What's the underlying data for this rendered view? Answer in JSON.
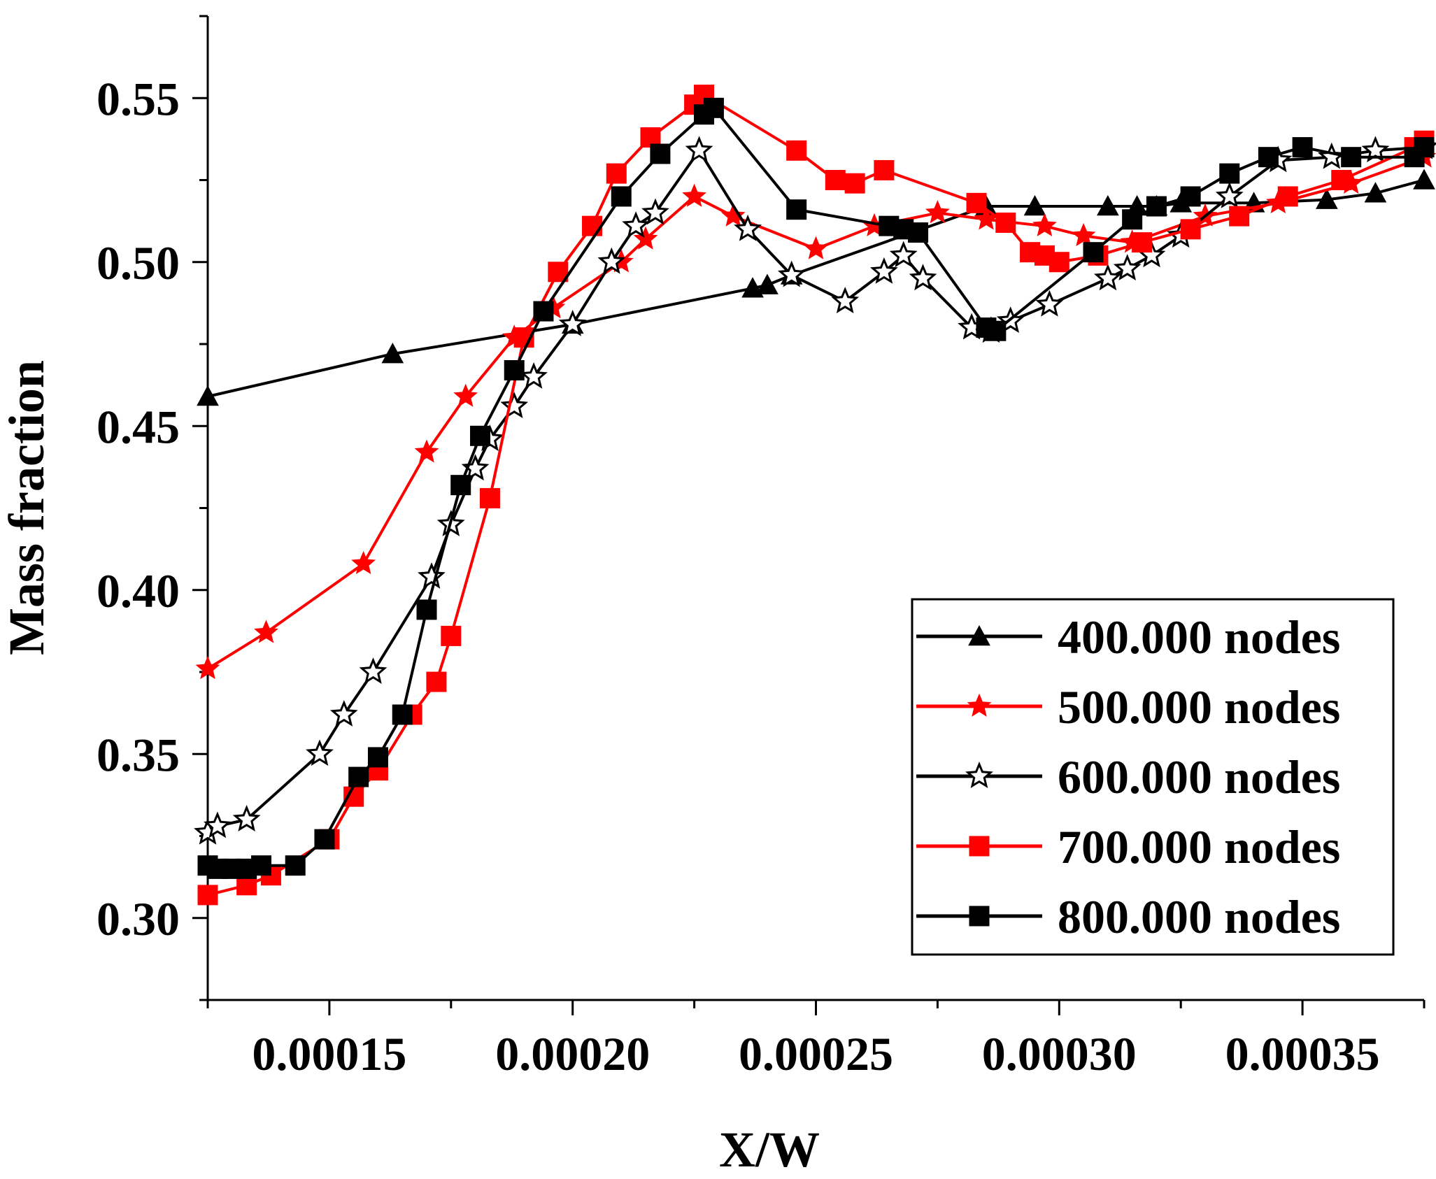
{
  "chart_data": {
    "type": "line",
    "title": "",
    "xlabel": "X/W",
    "ylabel": "Mass fraction",
    "xlim": [
      0.000125,
      0.000375
    ],
    "ylim": [
      0.275,
      0.575
    ],
    "xticks": [
      0.00015,
      0.0002,
      0.00025,
      0.0003,
      0.00035
    ],
    "xtick_labels": [
      "0.00015",
      "0.00020",
      "0.00025",
      "0.00030",
      "0.00035"
    ],
    "yticks": [
      0.3,
      0.35,
      0.4,
      0.45,
      0.5,
      0.55
    ],
    "ytick_labels": [
      "0.30",
      "0.35",
      "0.40",
      "0.45",
      "0.50",
      "0.55"
    ],
    "legend_position": "lower-right",
    "series": [
      {
        "name": "400.000 nodes",
        "color": "#000000",
        "marker": "triangle-filled",
        "x": [
          0.000125,
          0.000163,
          0.0002,
          0.000237,
          0.00024,
          0.000245,
          0.000285,
          0.000295,
          0.00031,
          0.000316,
          0.00032,
          0.000325,
          0.00034,
          0.000355,
          0.000365,
          0.000375
        ],
        "y": [
          0.459,
          0.472,
          0.481,
          0.492,
          0.493,
          0.496,
          0.517,
          0.517,
          0.517,
          0.517,
          0.517,
          0.518,
          0.518,
          0.519,
          0.521,
          0.525
        ]
      },
      {
        "name": "500.000 nodes",
        "color": "#ff0000",
        "marker": "star-filled",
        "x": [
          0.000125,
          0.000137,
          0.000157,
          0.00017,
          0.000178,
          0.000188,
          0.000196,
          0.00021,
          0.000215,
          0.000225,
          0.000233,
          0.00025,
          0.000262,
          0.000275,
          0.000285,
          0.000297,
          0.000305,
          0.000315,
          0.00033,
          0.000345,
          0.00036,
          0.000375
        ],
        "y": [
          0.376,
          0.387,
          0.408,
          0.442,
          0.459,
          0.477,
          0.486,
          0.5,
          0.507,
          0.52,
          0.514,
          0.504,
          0.511,
          0.515,
          0.513,
          0.511,
          0.508,
          0.506,
          0.514,
          0.518,
          0.524,
          0.532
        ]
      },
      {
        "name": "600.000 nodes",
        "color": "#000000",
        "marker": "star-open",
        "x": [
          0.000125,
          0.000127,
          0.000133,
          0.000148,
          0.000153,
          0.000159,
          0.000171,
          0.000175,
          0.00018,
          0.000183,
          0.000188,
          0.000192,
          0.0002,
          0.000208,
          0.000213,
          0.000217,
          0.000226,
          0.000236,
          0.000245,
          0.000256,
          0.000264,
          0.000268,
          0.000272,
          0.000282,
          0.000286,
          0.00029,
          0.000298,
          0.00031,
          0.000314,
          0.000319,
          0.000325,
          0.000335,
          0.000345,
          0.000356,
          0.000365,
          0.000375
        ],
        "y": [
          0.326,
          0.328,
          0.33,
          0.35,
          0.362,
          0.375,
          0.404,
          0.42,
          0.437,
          0.446,
          0.456,
          0.465,
          0.481,
          0.5,
          0.511,
          0.515,
          0.534,
          0.51,
          0.496,
          0.488,
          0.497,
          0.502,
          0.495,
          0.48,
          0.479,
          0.482,
          0.487,
          0.495,
          0.498,
          0.502,
          0.508,
          0.52,
          0.531,
          0.532,
          0.534,
          0.535
        ]
      },
      {
        "name": "700.000 nodes",
        "color": "#ff0000",
        "marker": "square-filled",
        "x": [
          0.000125,
          0.000133,
          0.000138,
          0.00015,
          0.000155,
          0.00016,
          0.000167,
          0.000172,
          0.000175,
          0.000183,
          0.00019,
          0.000197,
          0.000204,
          0.000209,
          0.000216,
          0.000225,
          0.000227,
          0.000246,
          0.000254,
          0.000258,
          0.000264,
          0.000283,
          0.000289,
          0.000294,
          0.000297,
          0.0003,
          0.000308,
          0.000317,
          0.000327,
          0.000337,
          0.000347,
          0.000358,
          0.000373,
          0.000375
        ],
        "y": [
          0.307,
          0.31,
          0.313,
          0.324,
          0.337,
          0.345,
          0.362,
          0.372,
          0.386,
          0.428,
          0.477,
          0.497,
          0.511,
          0.527,
          0.538,
          0.548,
          0.551,
          0.534,
          0.525,
          0.524,
          0.528,
          0.518,
          0.512,
          0.503,
          0.502,
          0.5,
          0.502,
          0.506,
          0.51,
          0.514,
          0.52,
          0.525,
          0.535,
          0.537
        ]
      },
      {
        "name": "800.000 nodes",
        "color": "#000000",
        "marker": "square-filled",
        "x": [
          0.000125,
          0.000127,
          0.00013,
          0.000133,
          0.000136,
          0.000143,
          0.000149,
          0.000156,
          0.00016,
          0.000165,
          0.00017,
          0.000177,
          0.000181,
          0.000188,
          0.000194,
          0.00021,
          0.000218,
          0.000227,
          0.000229,
          0.000246,
          0.000265,
          0.000268,
          0.000271,
          0.000285,
          0.000287,
          0.000307,
          0.000315,
          0.00032,
          0.000327,
          0.000335,
          0.000343,
          0.00035,
          0.00036,
          0.000373,
          0.000375
        ],
        "y": [
          0.316,
          0.315,
          0.315,
          0.315,
          0.316,
          0.316,
          0.324,
          0.343,
          0.349,
          0.362,
          0.394,
          0.432,
          0.447,
          0.467,
          0.485,
          0.52,
          0.533,
          0.545,
          0.547,
          0.516,
          0.511,
          0.51,
          0.509,
          0.48,
          0.479,
          0.503,
          0.513,
          0.517,
          0.52,
          0.527,
          0.532,
          0.535,
          0.532,
          0.532,
          0.535
        ]
      }
    ]
  }
}
